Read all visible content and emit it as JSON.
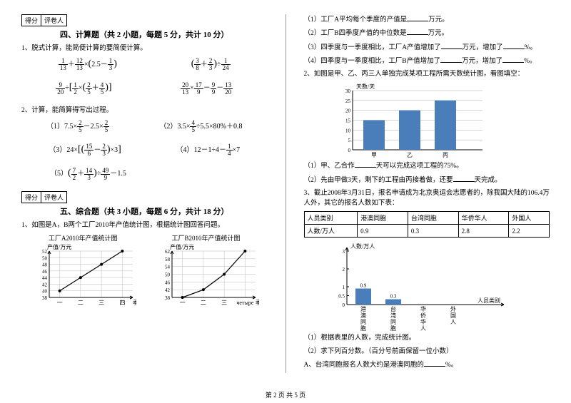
{
  "scoreBox": {
    "score": "得分",
    "grader": "评卷人"
  },
  "section4": {
    "title": "四、计算题（共 2 小题，每题 5 分，共计 10 分）",
    "q1": "1、脱式计算，能简便计算的要简便计算。",
    "q2": "2、计算，能简算得写出过程。",
    "sub": {
      "p1": "（1）",
      "p2": "（2）",
      "p3": "（3）",
      "p4": "（4）",
      "p5": "（5）"
    },
    "expr_2_1": "7.5×",
    "expr_2_1b": "－2.5×",
    "expr_2_2": "3.5×",
    "expr_2_2b": "÷5.5×80%＋0.8",
    "expr_2_3a": "24×",
    "expr_2_4a": "12－1÷4－",
    "expr_2_4b": "×7",
    "expr_2_5b": "－1.5"
  },
  "section5": {
    "title": "五、综合题（共 3 小题，每题 6 分，共计 18 分）",
    "q1": "1、如图是A，B两个工厂2010年产值统计图，根据统计图回答问题。",
    "chartA": {
      "title": "工厂A2010年产值统计图",
      "ylabel": "产值/万元",
      "xlabel": "季度",
      "xticks": [
        "一",
        "二",
        "三",
        "四"
      ],
      "yticks": [
        38,
        40,
        42,
        44,
        46,
        48,
        50,
        52
      ],
      "points": [
        40,
        44,
        48,
        52
      ],
      "color": "#000"
    },
    "chartB": {
      "title": "工厂B2010年产值统计图",
      "ylabel": "产值/万元",
      "xlabel": "季度",
      "xticks": [
        "一",
        "二",
        "三",
        "четыре"
      ],
      "yticks": [
        38,
        42,
        46,
        50,
        54,
        58,
        62
      ],
      "points": [
        38,
        42,
        50,
        62
      ],
      "color": "#000"
    }
  },
  "rightCol": {
    "q1": "（1）工厂A平均每个季度的产值是",
    "q1b": "万元。",
    "q2": "（2）工厂B四季度产值的中位数是",
    "q2b": "万元。",
    "q3": "（3）四季度与一季度相比，工厂A产值增加了",
    "q3b": "万元，增加了",
    "q3c": "%。",
    "q4": "（4）四季度与一季度相比，工厂B产值增加了",
    "q4b": "万元，增加了",
    "q4c": "%。",
    "q5": "2、如图是甲、乙、丙三人单独完成某项工程所需天数统计图，看图填空：",
    "barChart": {
      "ylabel": "天数/天",
      "yticks": [
        0,
        5,
        10,
        15,
        20,
        25,
        30
      ],
      "categories": [
        "甲",
        "乙",
        "丙"
      ],
      "values": [
        15,
        20,
        25
      ],
      "bar_color": "#4a7ebb",
      "grid_color": "#aaa"
    },
    "q5_1": "（1）甲、乙合作",
    "q5_1b": "天可以完成这项工程的75%。",
    "q5_2": "（2）先由甲做3天，剩下的工程由丙接着做，还要",
    "q5_2b": "天完成。",
    "q6": "3、截止2008年3月31日，报名申请成为北京奥运会志愿者的，除我国大陆的106.4万人外，其它的报名人数如下表：",
    "table": {
      "headers": [
        "人员类别",
        "港澳同胞",
        "台湾同胞",
        "华侨华人",
        "外国人"
      ],
      "row": [
        "人数/万人",
        "0.9",
        "0.3",
        "2.8",
        "2.2"
      ]
    },
    "barChart2": {
      "ylabel": "人数/万人",
      "xlabel": "人员类别",
      "yticks": [
        0,
        0.5,
        1,
        2,
        3
      ],
      "ylabels_shown": [
        "0",
        "0.5",
        "1",
        "2",
        "3"
      ],
      "categories": [
        "港澳同胞",
        "台湾同胞",
        "华侨华人",
        "外国人"
      ],
      "values": [
        0.9,
        0.3,
        null,
        null
      ],
      "value_labels": [
        "0.9",
        "0.3",
        "",
        ""
      ],
      "bar_color": "#4a7ebb"
    },
    "q6_1": "（1）根据表里的人数，完成统计图。",
    "q6_2": "（2）求下列百分数。（百分号前面保留一位小数）",
    "q6_A": "A、台湾同胞报名人数大约是港澳同胞的",
    "q6_Ab": "%。"
  },
  "footer": "第 2 页 共 5 页"
}
